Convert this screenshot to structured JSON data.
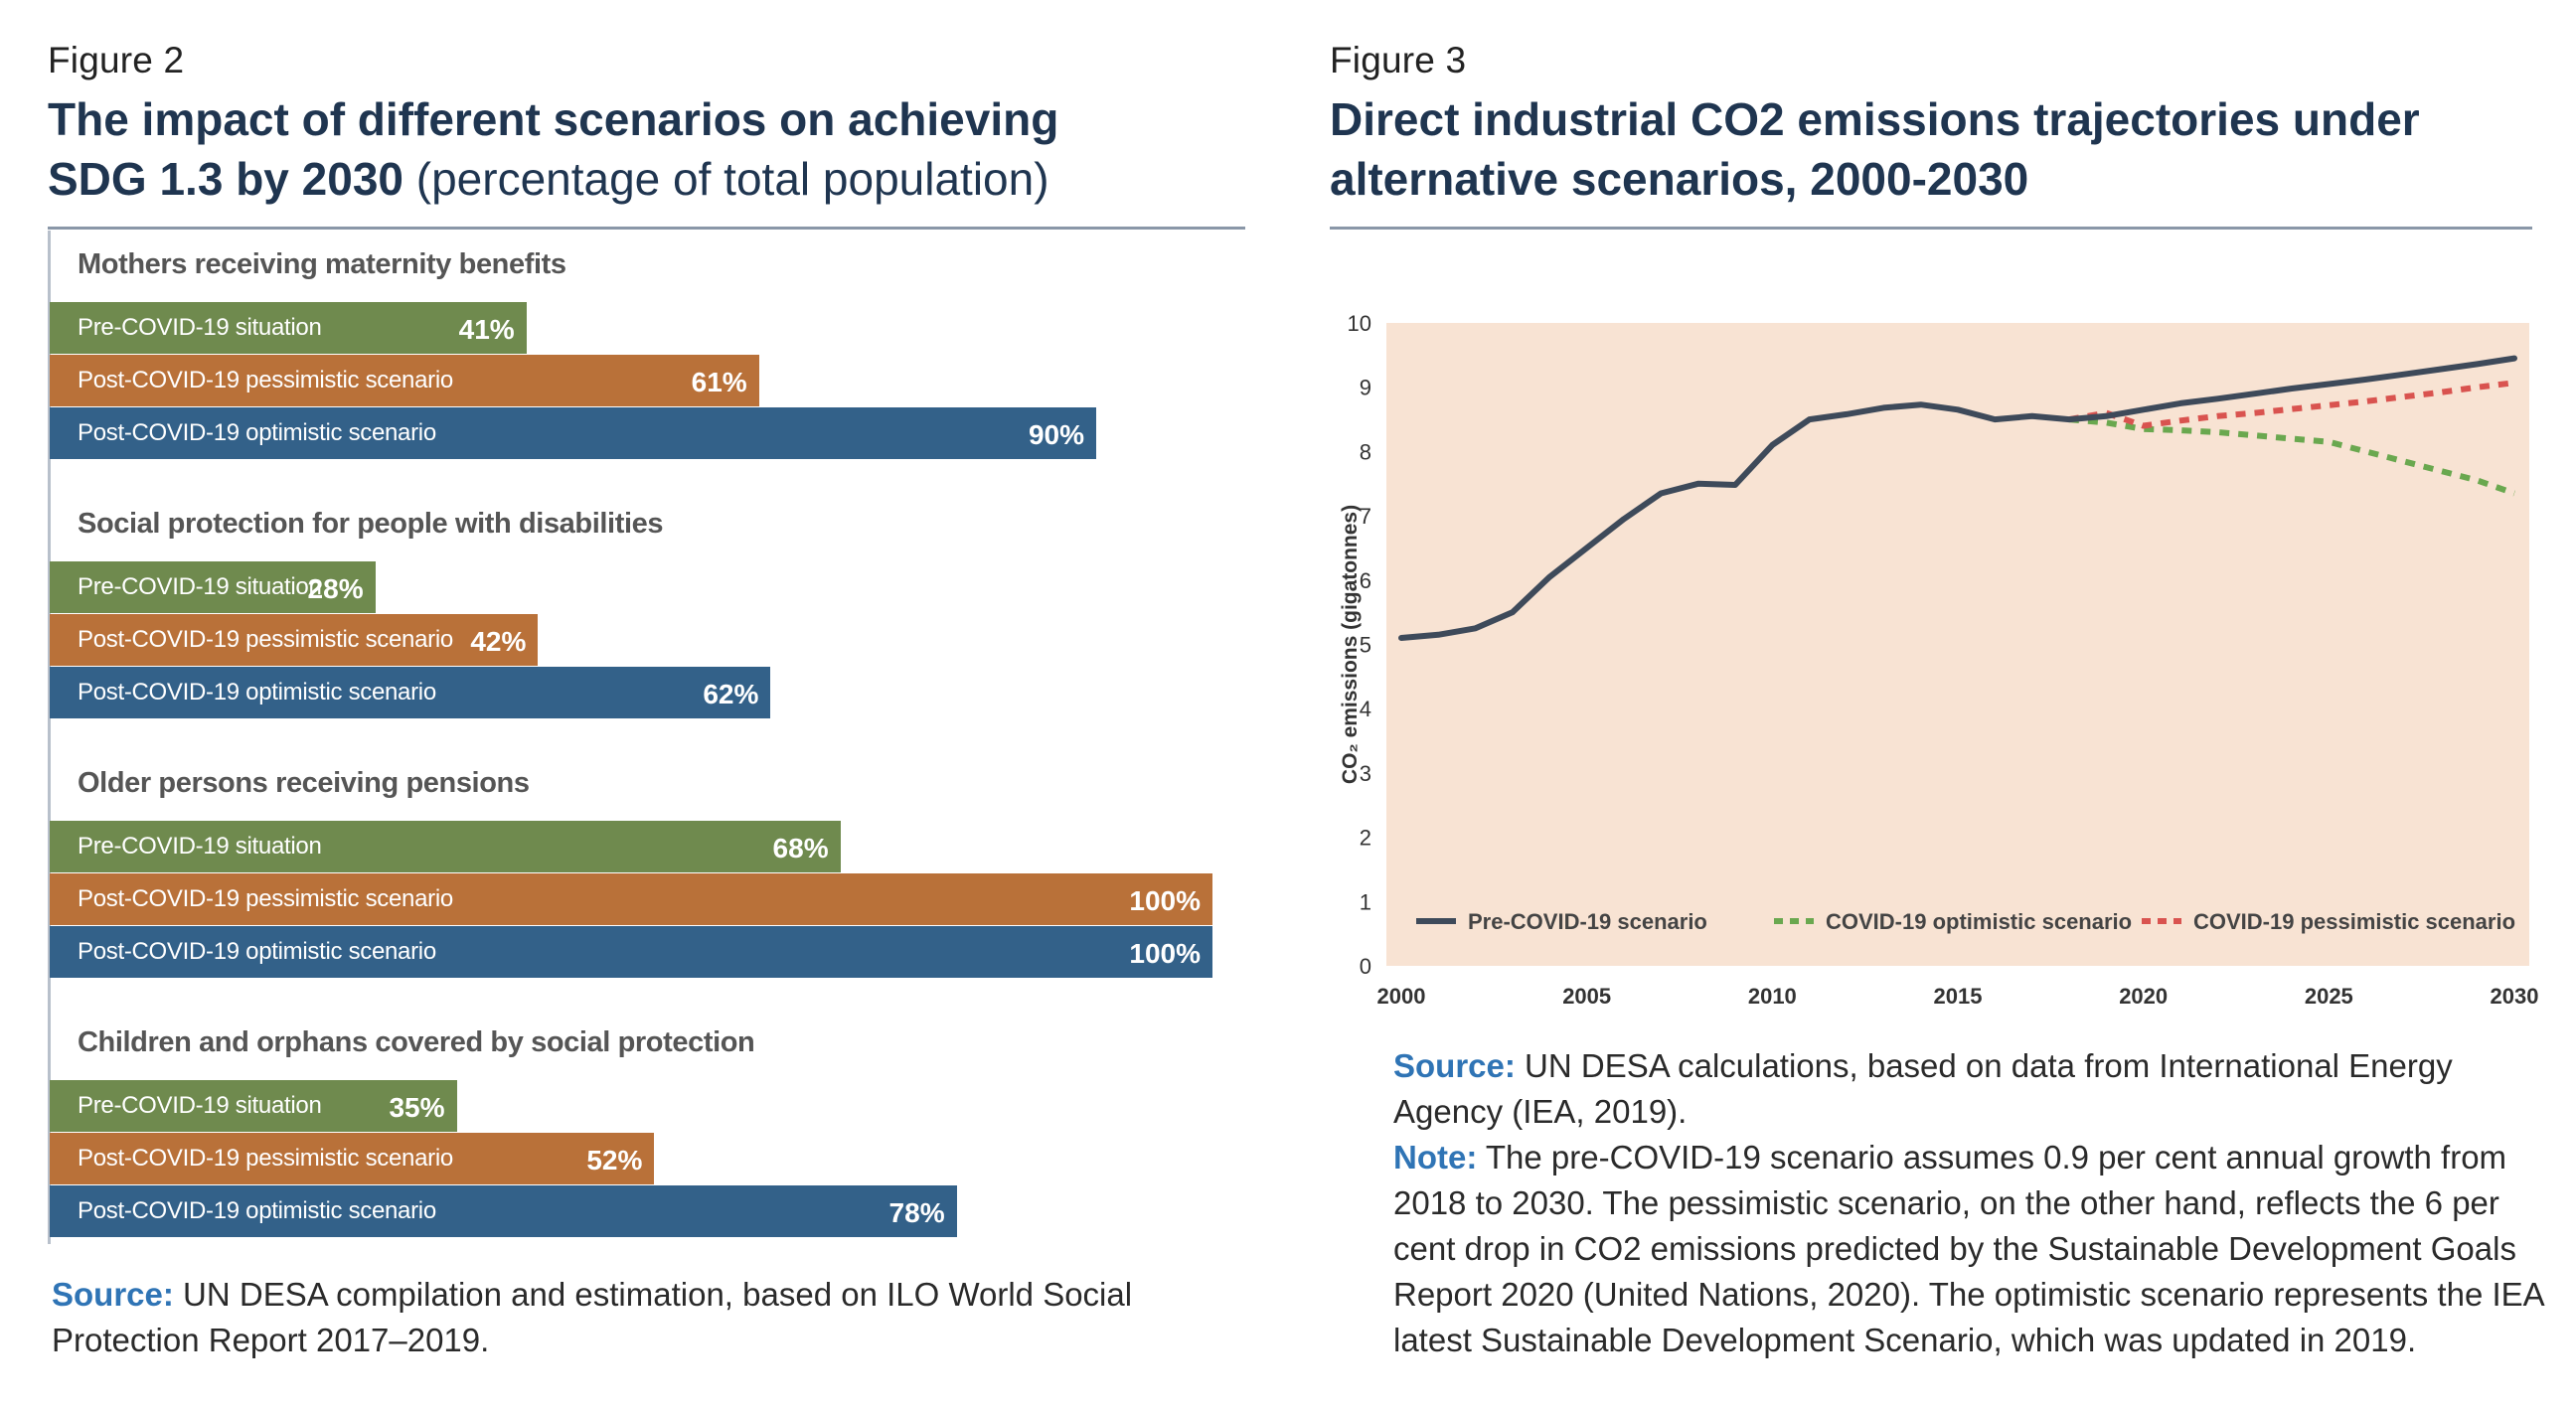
{
  "fig2": {
    "label": "Figure 2",
    "title_bold_line1": "The impact of different scenarios on achieving",
    "title_bold_line2": "SDG 1.3 by 2030",
    "title_sub": " (percentage of total population)",
    "source_label": "Source:",
    "source_text": " UN DESA compilation and estimation, based on ILO World Social Protection Report 2017–2019."
  },
  "fig3": {
    "label": "Figure 3",
    "title_line1": "Direct industrial CO2 emissions trajectories under",
    "title_line2": "alternative scenarios, 2000-2030",
    "source_label": "Source:",
    "source_text": " UN DESA calculations, based on data from International Energy Agency (IEA, 2019).",
    "note_label": "Note:",
    "note_text": " The pre-COVID-19 scenario assumes 0.9 per cent annual growth from 2018 to 2030. The pessimistic scenario, on the other hand, reflects the 6 per cent drop in CO2 emissions predicted by the Sustainable Development Goals Report 2020 (United Nations, 2020). The optimistic scenario represents the IEA latest Sustainable Development Scenario, which was updated in 2019."
  },
  "colors": {
    "pre": "#6f8a4e",
    "pessimistic": "#b97139",
    "optimistic": "#336189",
    "line_pre": "#3e4a5a",
    "line_opt": "#6aa84f",
    "line_pes": "#d9534f",
    "plot_bg": "#f8e3d3"
  },
  "chart_data": [
    {
      "type": "bar",
      "orientation": "horizontal",
      "unit": "%",
      "xlim": [
        0,
        100
      ],
      "series_labels": [
        "Pre-COVID-19 situation",
        "Post-COVID-19 pessimistic scenario",
        "Post-COVID-19 optimistic scenario"
      ],
      "groups": [
        {
          "title": "Mothers receiving maternity benefits",
          "values": [
            41,
            61,
            90
          ],
          "labels": [
            "41%",
            "61%",
            "90%"
          ]
        },
        {
          "title": "Social protection for people with disabilities",
          "values": [
            28,
            42,
            62
          ],
          "labels": [
            "28%",
            "42%",
            "62%"
          ]
        },
        {
          "title": "Older persons receiving pensions",
          "values": [
            68,
            100,
            100
          ],
          "labels": [
            "68%",
            "100%",
            "100%"
          ]
        },
        {
          "title": "Children and orphans covered by social protection",
          "values": [
            35,
            52,
            78
          ],
          "labels": [
            "35%",
            "52%",
            "78%"
          ]
        }
      ]
    },
    {
      "type": "line",
      "ylabel": "CO₂ emissions (gigatonnes)",
      "xlim": [
        2000,
        2030
      ],
      "ylim": [
        0,
        10
      ],
      "x_ticks": [
        2000,
        2005,
        2010,
        2015,
        2020,
        2025,
        2030
      ],
      "y_ticks": [
        0,
        1,
        2,
        3,
        4,
        5,
        6,
        7,
        8,
        9,
        10
      ],
      "grid": false,
      "legend_position": "bottom-inside",
      "series": [
        {
          "name": "Pre-COVID-19 scenario",
          "style": "solid",
          "x": [
            2000,
            2001,
            2002,
            2003,
            2004,
            2005,
            2006,
            2007,
            2008,
            2009,
            2010,
            2011,
            2012,
            2013,
            2014,
            2015,
            2016,
            2017,
            2018,
            2019,
            2020,
            2021,
            2022,
            2023,
            2024,
            2025,
            2026,
            2027,
            2028,
            2029,
            2030
          ],
          "y": [
            5.1,
            5.15,
            5.25,
            5.5,
            6.05,
            6.5,
            6.95,
            7.35,
            7.5,
            7.48,
            8.1,
            8.5,
            8.58,
            8.68,
            8.73,
            8.65,
            8.5,
            8.55,
            8.5,
            8.55,
            8.65,
            8.75,
            8.82,
            8.9,
            8.98,
            9.05,
            9.12,
            9.2,
            9.28,
            9.36,
            9.45
          ]
        },
        {
          "name": "COVID-19 optimistic scenario",
          "style": "dashed",
          "x": [
            2018,
            2019,
            2020,
            2021,
            2022,
            2023,
            2024,
            2025,
            2026,
            2027,
            2028,
            2029,
            2030
          ],
          "y": [
            8.5,
            8.45,
            8.35,
            8.33,
            8.3,
            8.25,
            8.2,
            8.15,
            8.0,
            7.85,
            7.7,
            7.55,
            7.35
          ]
        },
        {
          "name": "COVID-19 pessimistic scenario",
          "style": "dashed",
          "x": [
            2018,
            2019,
            2020,
            2021,
            2022,
            2023,
            2024,
            2025,
            2026,
            2027,
            2028,
            2029,
            2030
          ],
          "y": [
            8.5,
            8.6,
            8.4,
            8.48,
            8.55,
            8.6,
            8.66,
            8.72,
            8.78,
            8.85,
            8.92,
            9.0,
            9.07
          ]
        }
      ]
    }
  ]
}
